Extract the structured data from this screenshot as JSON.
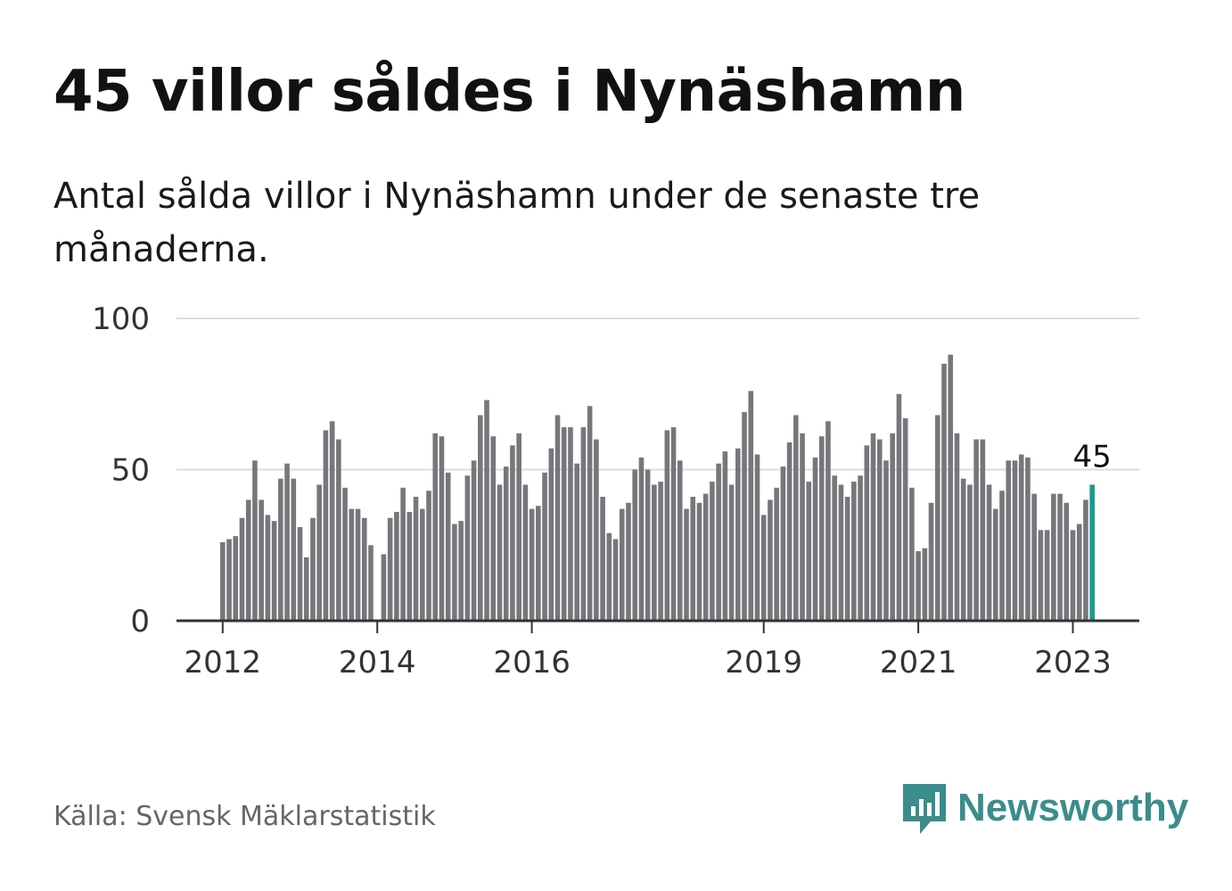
{
  "title": "45 villor såldes i Nynäshamn",
  "subtitle": "Antal sålda villor i Nynäshamn under de senaste tre månaderna.",
  "source": "Källa: Svensk Mäklarstatistik",
  "brand": {
    "name": "Newsworthy",
    "icon": "newsworthy-logo-icon"
  },
  "colors": {
    "bar": "#77767b",
    "highlight": "#1a9a8f",
    "grid": "#dcdcdc",
    "axis": "#333333",
    "brand": "#3a8d8c"
  },
  "chart_data": {
    "type": "bar",
    "title": "45 villor såldes i Nynäshamn",
    "xlabel": "",
    "ylabel": "",
    "ylim": [
      0,
      100
    ],
    "yticks": [
      0,
      50,
      100
    ],
    "grid": true,
    "x_start": "2012-01",
    "xtick_labels": [
      {
        "label": "2012",
        "index": 0
      },
      {
        "label": "2014",
        "index": 24
      },
      {
        "label": "2016",
        "index": 48
      },
      {
        "label": "2019",
        "index": 84
      },
      {
        "label": "2021",
        "index": 108
      },
      {
        "label": "2023",
        "index": 132
      }
    ],
    "values": [
      26,
      27,
      28,
      34,
      40,
      53,
      40,
      35,
      33,
      47,
      52,
      47,
      31,
      21,
      34,
      45,
      63,
      66,
      60,
      44,
      37,
      37,
      34,
      25,
      0,
      22,
      34,
      36,
      44,
      36,
      41,
      37,
      43,
      62,
      61,
      49,
      32,
      33,
      48,
      53,
      68,
      73,
      61,
      45,
      51,
      58,
      62,
      45,
      37,
      38,
      49,
      57,
      68,
      64,
      64,
      52,
      64,
      71,
      60,
      41,
      29,
      27,
      37,
      39,
      50,
      54,
      50,
      45,
      46,
      63,
      64,
      53,
      37,
      41,
      39,
      42,
      46,
      52,
      56,
      45,
      57,
      69,
      76,
      55,
      35,
      40,
      44,
      51,
      59,
      68,
      62,
      46,
      54,
      61,
      66,
      48,
      45,
      41,
      46,
      48,
      58,
      62,
      60,
      53,
      62,
      75,
      67,
      44,
      23,
      24,
      39,
      68,
      85,
      88,
      62,
      47,
      45,
      60,
      60,
      45,
      37,
      43,
      53,
      53,
      55,
      54,
      42,
      30,
      30,
      42,
      42,
      39,
      30,
      32,
      40,
      45
    ],
    "highlight_label": "45"
  }
}
